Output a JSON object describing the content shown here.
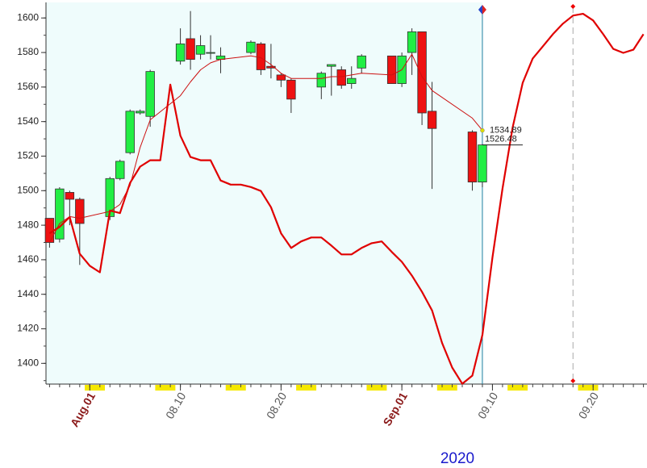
{
  "chart_data": {
    "type": "candlestick",
    "xlabel": "2020",
    "xlim": [
      "2020-07-28",
      "2020-09-25"
    ],
    "ylim": [
      1388,
      1609
    ],
    "yticks": [
      1400,
      1420,
      1440,
      1460,
      1480,
      1500,
      1520,
      1540,
      1560,
      1580,
      1600
    ],
    "xticks": [
      {
        "value": "2020-08-01",
        "label": "Aug.01",
        "bold": true
      },
      {
        "value": "2020-08-10",
        "label": "08.10"
      },
      {
        "value": "2020-08-20",
        "label": "08.20"
      },
      {
        "value": "2020-09-01",
        "label": "Sep.01",
        "bold": true
      },
      {
        "value": "2020-09-10",
        "label": "09.10"
      },
      {
        "value": "2020-09-20",
        "label": "09.20"
      }
    ],
    "vline": "2020-09-18",
    "candles": {
      "up_color": "#22ee44",
      "down_color": "#ee1111",
      "x": [
        "2020-07-28",
        "2020-07-29",
        "2020-07-30",
        "2020-07-31",
        "2020-08-03",
        "2020-08-04",
        "2020-08-05",
        "2020-08-06",
        "2020-08-07",
        "2020-08-10",
        "2020-08-11",
        "2020-08-12",
        "2020-08-13",
        "2020-08-14",
        "2020-08-17",
        "2020-08-18",
        "2020-08-19",
        "2020-08-20",
        "2020-08-21",
        "2020-08-24",
        "2020-08-25",
        "2020-08-26",
        "2020-08-27",
        "2020-08-28",
        "2020-08-31",
        "2020-09-01",
        "2020-09-02",
        "2020-09-03",
        "2020-09-04",
        "2020-09-08",
        "2020-09-09"
      ],
      "open": [
        1484,
        1472,
        1499,
        1495,
        1485,
        1507,
        1522,
        1545,
        1543,
        1575,
        1588,
        1579,
        1580,
        1576,
        1580,
        1585,
        1572,
        1567,
        1564,
        1560,
        1572,
        1570,
        1562,
        1571,
        1578,
        1562,
        1580,
        1592,
        1546,
        1534,
        1505
      ],
      "high": [
        1484,
        1502,
        1500,
        1496,
        1508,
        1518,
        1547,
        1547,
        1570,
        1594,
        1604,
        1590,
        1590,
        1583,
        1587,
        1586,
        1585,
        1568,
        1565,
        1569,
        1573,
        1572,
        1572,
        1579,
        1578,
        1580,
        1594,
        1592,
        1563,
        1535,
        1527
      ],
      "low": [
        1467,
        1470,
        1480,
        1457,
        1483,
        1506,
        1521,
        1544,
        1537,
        1573,
        1570,
        1576,
        1576,
        1568,
        1579,
        1567,
        1565,
        1560,
        1545,
        1553,
        1555,
        1559,
        1559,
        1568,
        1562,
        1560,
        1567,
        1538,
        1501,
        1500,
        1502
      ],
      "close": [
        1470,
        1501,
        1495,
        1481,
        1507,
        1517,
        1546,
        1546,
        1569,
        1585,
        1576,
        1584,
        1580,
        1578,
        1586,
        1570,
        1571,
        1564,
        1553,
        1568,
        1573,
        1561,
        1565,
        1578,
        1562,
        1578,
        1592,
        1545,
        1536,
        1505,
        1526.48
      ]
    },
    "lines": [
      {
        "color": "#cc1111",
        "width": 1,
        "x": [
          "2020-07-28",
          "2020-07-29",
          "2020-07-30",
          "2020-07-31",
          "2020-08-03",
          "2020-08-04",
          "2020-08-05",
          "2020-08-06",
          "2020-08-07",
          "2020-08-10",
          "2020-08-11",
          "2020-08-12",
          "2020-08-13",
          "2020-08-14",
          "2020-08-17",
          "2020-08-18",
          "2020-08-19",
          "2020-08-20",
          "2020-08-21",
          "2020-08-24",
          "2020-08-25",
          "2020-08-26",
          "2020-08-27",
          "2020-08-28",
          "2020-08-31",
          "2020-09-01",
          "2020-09-02",
          "2020-09-03",
          "2020-09-04",
          "2020-09-08",
          "2020-09-09"
        ],
        "values": [
          1470,
          1481,
          1485,
          1484,
          1488,
          1492,
          1503,
          1525,
          1541,
          1555,
          1563,
          1570,
          1574,
          1576,
          1578,
          1577,
          1573,
          1568,
          1565,
          1565,
          1566,
          1566,
          1567,
          1568,
          1567,
          1570,
          1579,
          1566,
          1558,
          1542,
          1534.89
        ]
      },
      {
        "color": "#e00000",
        "width": 2.2,
        "x": [
          "2020-07-28",
          "2020-07-29",
          "2020-07-30",
          "2020-07-31",
          "2020-08-01",
          "2020-08-02",
          "2020-08-03",
          "2020-08-04",
          "2020-08-05",
          "2020-08-06",
          "2020-08-07",
          "2020-08-08",
          "2020-08-09",
          "2020-08-10",
          "2020-08-11",
          "2020-08-12",
          "2020-08-13",
          "2020-08-14",
          "2020-08-15",
          "2020-08-16",
          "2020-08-17",
          "2020-08-18",
          "2020-08-19",
          "2020-08-20",
          "2020-08-21",
          "2020-08-22",
          "2020-08-23",
          "2020-08-24",
          "2020-08-25",
          "2020-08-26",
          "2020-08-27",
          "2020-08-28",
          "2020-08-29",
          "2020-08-30",
          "2020-08-31",
          "2020-09-01",
          "2020-09-02",
          "2020-09-03",
          "2020-09-04",
          "2020-09-05",
          "2020-09-06",
          "2020-09-07",
          "2020-09-08",
          "2020-09-09",
          "2020-09-10",
          "2020-09-11",
          "2020-09-12",
          "2020-09-13",
          "2020-09-14",
          "2020-09-15",
          "2020-09-16",
          "2020-09-17",
          "2020-09-18",
          "2020-09-19",
          "2020-09-20",
          "2020-09-21",
          "2020-09-22",
          "2020-09-23",
          "2020-09-24",
          "2020-09-25"
        ],
        "values": [
          1475.3,
          1479,
          1484.7,
          1463.5,
          1456.5,
          1452.7,
          1488.5,
          1487,
          1504.5,
          1513.9,
          1517.6,
          1517.6,
          1561.4,
          1531.8,
          1519.5,
          1517.6,
          1517.6,
          1505.9,
          1503.5,
          1503.5,
          1502.1,
          1499.8,
          1490.4,
          1475.3,
          1466.8,
          1470.6,
          1472.9,
          1472.9,
          1468.2,
          1463.1,
          1463.1,
          1466.8,
          1469.6,
          1470.6,
          1464.5,
          1458.8,
          1450.8,
          1441.4,
          1430.6,
          1411.8,
          1397.6,
          1388.2,
          1392.9,
          1416.5,
          1461.2,
          1501.2,
          1536.5,
          1562.4,
          1576.5,
          1583.5,
          1590.6,
          1596.7,
          1601.4,
          1602.4,
          1598.6,
          1590.6,
          1582.1,
          1579.8,
          1581.6,
          1590.6
        ]
      }
    ]
  }
}
